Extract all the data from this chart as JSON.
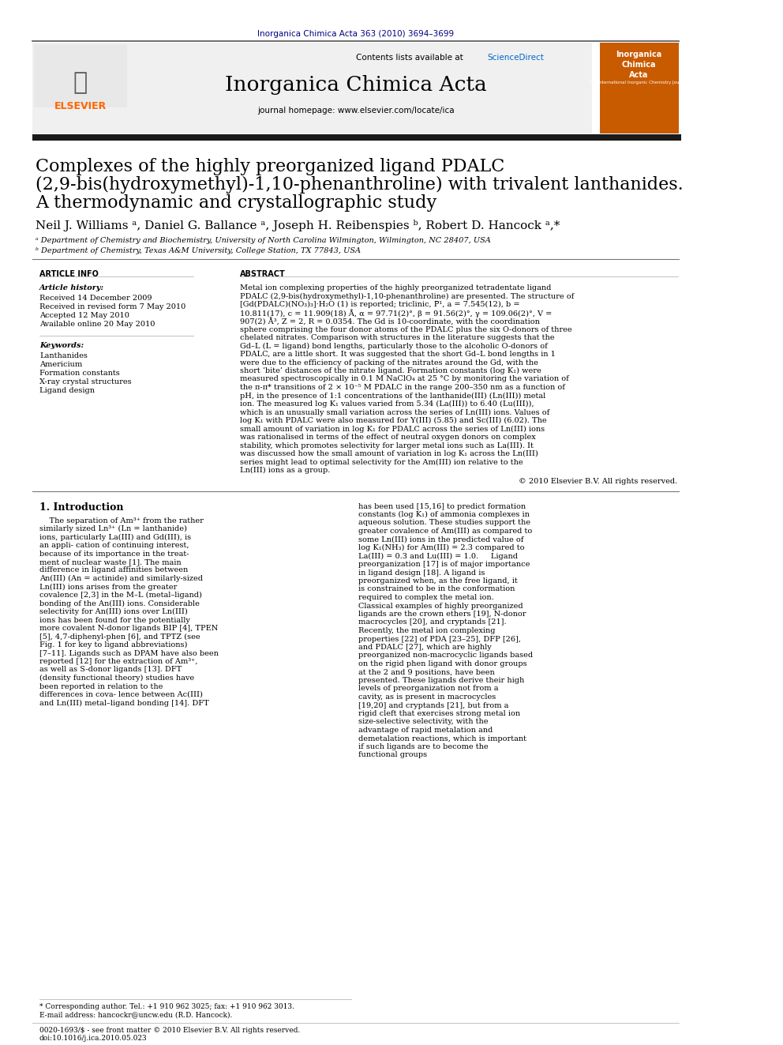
{
  "journal_ref": "Inorganica Chimica Acta 363 (2010) 3694–3699",
  "journal_ref_color": "#000080",
  "contents_line": "Contents lists available at ",
  "science_direct": "ScienceDirect",
  "science_direct_color": "#0066cc",
  "journal_name": "Inorganica Chimica Acta",
  "journal_homepage": "journal homepage: www.elsevier.com/locate/ica",
  "title_line1": "Complexes of the highly preorganized ligand PDALC",
  "title_line2": "(2,9-bis(hydroxymethyl)-1,10-phenanthroline) with trivalent lanthanides.",
  "title_line3": "A thermodynamic and crystallographic study",
  "authors": "Neil J. Williams ᵃ, Daniel G. Ballance ᵃ, Joseph H. Reibenspies ᵇ, Robert D. Hancock ᵃ,*",
  "affil_a": "ᵃ Department of Chemistry and Biochemistry, University of North Carolina Wilmington, Wilmington, NC 28407, USA",
  "affil_b": "ᵇ Department of Chemistry, Texas A&M University, College Station, TX 77843, USA",
  "article_info_header": "ARTICLE INFO",
  "abstract_header": "ABSTRACT",
  "article_history_label": "Article history:",
  "received1": "Received 14 December 2009",
  "received2": "Received in revised form 7 May 2010",
  "accepted": "Accepted 12 May 2010",
  "available": "Available online 20 May 2010",
  "keywords_label": "Keywords:",
  "keywords": [
    "Lanthanides",
    "Americium",
    "Formation constants",
    "X-ray crystal structures",
    "Ligand design"
  ],
  "abstract_text": "Metal ion complexing properties of the highly preorganized tetradentate ligand PDALC (2,9-bis(hydroxymethyl)-1,10-phenanthroline) are presented. The structure of [Gd(PDALC)(NO₃)₃]·H₂O (1) is reported; triclinic, P̅¹, a = 7.545(12), b = 10.811(17), c = 11.909(18) Å, α = 97.71(2)°, β = 91.56(2)°, γ = 109.06(2)°, V = 907(2) Å³, Z = 2, R = 0.0354. The Gd is 10-coordinate, with the coordination sphere comprising the four donor atoms of the PDALC plus the six O-donors of three chelated nitrates. Comparison with structures in the literature suggests that the Gd–L (L = ligand) bond lengths, particularly those to the alcoholic O-donors of PDALC, are a little short. It was suggested that the short Gd–L bond lengths in 1 were due to the efficiency of packing of the nitrates around the Gd, with the short ‘bite’ distances of the nitrate ligand. Formation constants (log K₁) were measured spectroscopically in 0.1 M NaClO₄ at 25 °C by monitoring the variation of the π-π* transitions of 2 × 10⁻⁵ M PDALC in the range 200–350 nm as a function of pH, in the presence of 1:1 concentrations of the lanthanide(III) (Ln(III)) metal ion. The measured log K₁ values varied from 5.34 (La(III)) to 6.40 (Lu(III)), which is an unusually small variation across the series of Ln(III) ions. Values of log K₁ with PDALC were also measured for Y(III) (5.85) and Sc(III) (6.02). The small amount of variation in log K₁ for PDALC across the series of Ln(III) ions was rationalised in terms of the effect of neutral oxygen donors on complex stability, which promotes selectivity for larger metal ions such as La(III). It was discussed how the small amount of variation in log K₁ across the Ln(III) series might lead to optimal selectivity for the Am(III) ion relative to the Ln(III) ions as a group.",
  "copyright": "© 2010 Elsevier B.V. All rights reserved.",
  "intro_header": "1. Introduction",
  "intro_text1": "    The separation of Am³⁺ from the rather similarly sized Ln³⁺\n(Ln = lanthanide) ions, particularly La(III) and Gd(III), is an appli-\ncation of continuing interest, because of its importance in the treat-\nment of nuclear waste [1]. The main difference in ligand affinities\nbetween An(III) (An = actinide) and similarly-sized Ln(III) ions\narises from the greater covalence [2,3] in the M–L (metal–ligand)\nbonding of the An(III) ions. Considerable selectivity for An(III) ions\nover Ln(III) ions has been found for the potentially more covalent\nN-donor ligands BIP [4], TPEN [5], 4,7-diphenyl-phen [6], and TPTZ\n(see Fig. 1 for key to ligand abbreviations) [7–11]. Ligands such as\nDPAM have also been reported [12] for the extraction of Am³⁺, as\nwell as S-donor ligands [13]. DFT (density functional theory)\nstudies have been reported in relation to the differences in cova-\nlence between Ac(III) and Ln(III) metal–ligand bonding [14]. DFT",
  "intro_text2_right": "has been used [15,16] to predict formation constants (log K₁) of\nammonia complexes in aqueous solution. These studies support\nthe greater covalence of Am(III) as compared to some Ln(III) ions\nin the predicted value of log K₁(NH₃) for Am(III) = 2.3 compared\nto La(III) = 0.3 and Lu(III) = 1.0.\n    Ligand preorganization [17] is of major importance in ligand\ndesign [18]. A ligand is preorganized when, as the free ligand, it\nis constrained to be in the conformation required to complex the\nmetal ion. Classical examples of highly preorganized ligands are\nthe crown ethers [19], N-donor macrocycles [20], and cryptands\n[21]. Recently, the metal ion complexing properties [22] of PDA\n[23–25], DFP [26], and PDALC [27], which are highly preorganized\nnon-macrocyclic ligands based on the rigid phen ligand with donor\ngroups at the 2 and 9 positions, have been presented. These ligands\nderive their high levels of preorganization not from a cavity, as is\npresent in macrocycles [19,20] and cryptands [21], but from a rigid\ncleft that exercises strong metal ion size-selective selectivity, with\nthe advantage of rapid metalation and demetalation reactions, which\nis important if such ligands are to become the functional groups",
  "footer_line1": "* Corresponding author. Tel.: +1 910 962 3025; fax: +1 910 962 3013.",
  "footer_line2": "E-mail address: hancockr@uncw.edu (R.D. Hancock).",
  "footer_line3": "0020-1693/$ - see front matter © 2010 Elsevier B.V. All rights reserved.",
  "footer_doi": "doi:10.1016/j.ica.2010.05.023",
  "bg_color": "#ffffff",
  "header_bg": "#f0f0f0",
  "black_bar_color": "#1a1a1a",
  "divider_color": "#444444",
  "light_divider": "#999999"
}
